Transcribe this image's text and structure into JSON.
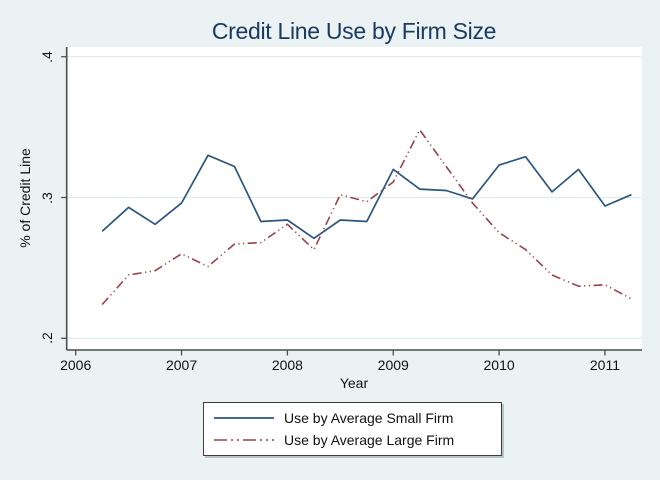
{
  "colors": {
    "background": "#EAF2F3",
    "plot_background": "#FFFFFF",
    "gridline": "#DFEAEC",
    "axis": "#4D4D4D",
    "title": "#1B3A63",
    "small_firm_line": "#2A567F",
    "large_firm_line": "#9A424A"
  },
  "chart_data": {
    "type": "line",
    "title": "Credit Line Use by Firm Size",
    "xlabel": "Year",
    "ylabel": "% of Credit Line",
    "grid": "horizontal",
    "legend_position": "bottom-center",
    "x_range": [
      2005.915,
      2011.35
    ],
    "y_range": [
      0.1917,
      0.4069
    ],
    "x_ticks": [
      2006,
      2007,
      2008,
      2009,
      2010,
      2011
    ],
    "x_ticklabels": [
      "2006",
      "2007",
      "2008",
      "2009",
      "2010",
      "2011"
    ],
    "y_ticks": [
      0.2,
      0.3,
      0.4
    ],
    "y_ticklabels": [
      ".2",
      ".3",
      ".4"
    ],
    "x": [
      2006.25,
      2006.5,
      2006.75,
      2007.0,
      2007.25,
      2007.5,
      2007.75,
      2008.0,
      2008.25,
      2008.5,
      2008.75,
      2009.0,
      2009.25,
      2009.5,
      2009.75,
      2010.0,
      2010.25,
      2010.5,
      2010.75,
      2011.0,
      2011.25
    ],
    "series": [
      {
        "name": "Use by Average Small Firm",
        "color": "#2A567F",
        "style": "solid",
        "values": [
          0.276,
          0.293,
          0.281,
          0.296,
          0.33,
          0.322,
          0.283,
          0.284,
          0.271,
          0.284,
          0.283,
          0.32,
          0.306,
          0.305,
          0.299,
          0.323,
          0.329,
          0.304,
          0.32,
          0.294,
          0.302
        ]
      },
      {
        "name": "Use by Average Large Firm",
        "color": "#9A424A",
        "style": "dash-dot-dot",
        "values": [
          0.224,
          0.245,
          0.248,
          0.26,
          0.251,
          0.267,
          0.268,
          0.281,
          0.263,
          0.302,
          0.297,
          0.311,
          0.348,
          0.322,
          0.296,
          0.275,
          0.263,
          0.245,
          0.237,
          0.238,
          0.228
        ]
      }
    ]
  }
}
